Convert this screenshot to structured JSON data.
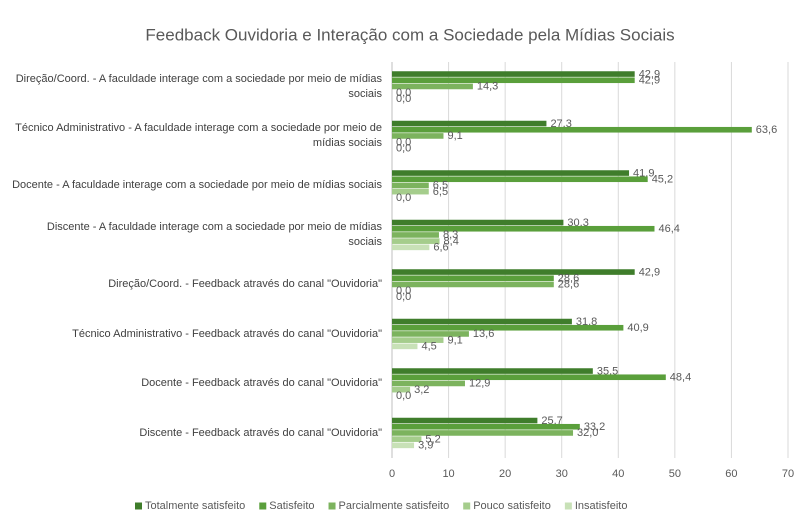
{
  "chart_data": {
    "type": "bar",
    "orientation": "horizontal",
    "title": "Feedback Ouvidoria e Interação com a Sociedade pela Mídias Sociais",
    "categories": [
      "Direção/Coord. - A faculdade interage com a sociedade por meio de mídias sociais",
      "Técnico Administrativo - A faculdade interage com a sociedade por meio de mídias sociais",
      "Docente - A faculdade interage com a sociedade por meio de mídias sociais",
      "Discente - A faculdade interage com a sociedade por meio de mídias sociais",
      "Direção/Coord. - Feedback através do canal \"Ouvidoria\"",
      "Técnico Administrativo - Feedback através do canal \"Ouvidoria\"",
      "Docente - Feedback através do canal \"Ouvidoria\"",
      "Discente - Feedback através do canal \"Ouvidoria\""
    ],
    "series": [
      {
        "name": "Totalmente satisfeito",
        "color": "#3f7d2b",
        "values": [
          42.9,
          27.3,
          41.9,
          30.3,
          42.9,
          31.8,
          35.5,
          25.7
        ],
        "value_labels": [
          "42,9",
          "27,3",
          "41,9",
          "30,3",
          "42,9",
          "31,8",
          "35,5",
          "25,7"
        ]
      },
      {
        "name": "Satisfeito",
        "color": "#5a9f3b",
        "values": [
          42.9,
          63.6,
          45.2,
          46.4,
          28.6,
          40.9,
          48.4,
          33.2
        ],
        "value_labels": [
          "42,9",
          "63,6",
          "45,2",
          "46,4",
          "28,6",
          "40,9",
          "48,4",
          "33,2"
        ]
      },
      {
        "name": "Parcialmente satisfeito",
        "color": "#7cb35e",
        "values": [
          14.3,
          9.1,
          6.5,
          8.3,
          28.6,
          13.6,
          12.9,
          32.0
        ],
        "value_labels": [
          "14,3",
          "9,1",
          "6,5",
          "8,3",
          "28,6",
          "13,6",
          "12,9",
          "32,0"
        ]
      },
      {
        "name": "Pouco satisfeito",
        "color": "#a5cd8c",
        "values": [
          0.0,
          0.0,
          6.5,
          8.4,
          0.0,
          9.1,
          3.2,
          5.2
        ],
        "value_labels": [
          "0,0",
          "0,0",
          "6,5",
          "8,4",
          "0,0",
          "9,1",
          "3,2",
          "5,2"
        ]
      },
      {
        "name": "Insatisfeito",
        "color": "#c8e1b7",
        "values": [
          0.0,
          0.0,
          0.0,
          6.6,
          0.0,
          4.5,
          0.0,
          3.9
        ],
        "value_labels": [
          "0,0",
          "0,0",
          "0,0",
          "6,6",
          "0,0",
          "4,5",
          "0,0",
          "3,9"
        ]
      }
    ],
    "xlim": [
      0,
      70
    ],
    "xticks": [
      0,
      10,
      20,
      30,
      40,
      50,
      60,
      70
    ],
    "grid": true,
    "legend": "bottom"
  }
}
